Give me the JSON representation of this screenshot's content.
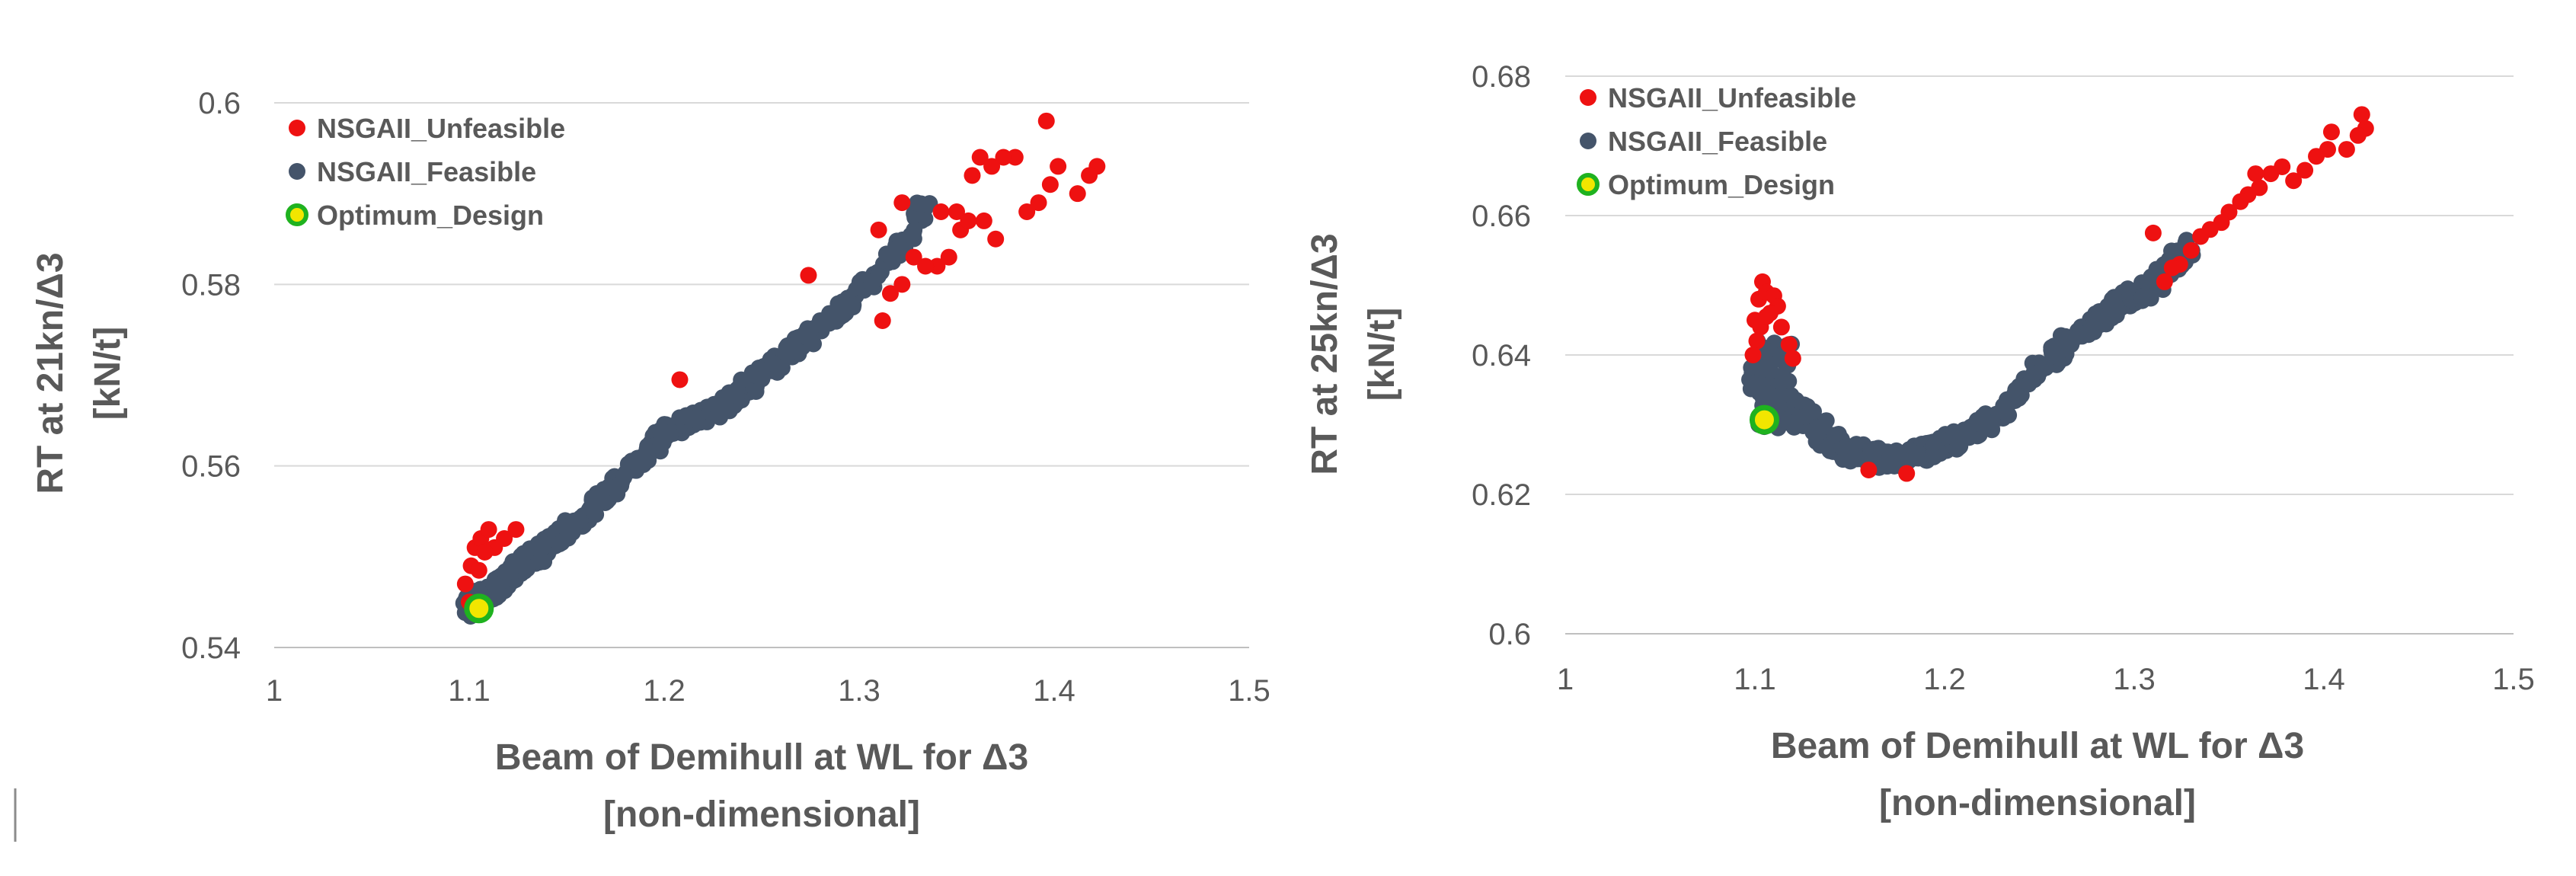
{
  "colors": {
    "unfeasible": "#ee1111",
    "feasible": "#44546a",
    "optimum_fill": "#f2e600",
    "optimum_ring": "#1fb21f"
  },
  "chart_data": [
    {
      "type": "scatter",
      "title": "",
      "xlabel": [
        "Beam of Demihull at WL for Δ3",
        "[non-dimensional]"
      ],
      "ylabel": [
        "RT at 21kn/Δ3",
        "[kN/t]"
      ],
      "xlim": [
        1,
        1.5
      ],
      "ylim": [
        0.54,
        0.6
      ],
      "xticks": [
        "1",
        "1.1",
        "1.2",
        "1.3",
        "1.4",
        "1.5"
      ],
      "yticks": [
        "0.54",
        "0.56",
        "0.58",
        "0.6"
      ],
      "legend_position": "top-left",
      "series": [
        {
          "name": "NSGAII_Unfeasible",
          "points": [
            [
              1.396,
              0.598
            ],
            [
              1.422,
              0.593
            ],
            [
              1.418,
              0.592
            ],
            [
              1.412,
              0.59
            ],
            [
              1.402,
              0.593
            ],
            [
              1.398,
              0.591
            ],
            [
              1.392,
              0.589
            ],
            [
              1.386,
              0.588
            ],
            [
              1.38,
              0.594
            ],
            [
              1.374,
              0.594
            ],
            [
              1.368,
              0.593
            ],
            [
              1.362,
              0.594
            ],
            [
              1.358,
              0.592
            ],
            [
              1.364,
              0.587
            ],
            [
              1.37,
              0.585
            ],
            [
              1.352,
              0.586
            ],
            [
              1.346,
              0.583
            ],
            [
              1.34,
              0.582
            ],
            [
              1.334,
              0.582
            ],
            [
              1.328,
              0.583
            ],
            [
              1.322,
              0.58
            ],
            [
              1.316,
              0.579
            ],
            [
              1.312,
              0.576
            ],
            [
              1.342,
              0.588
            ],
            [
              1.35,
              0.588
            ],
            [
              1.356,
              0.587
            ],
            [
              1.31,
              0.586
            ],
            [
              1.274,
              0.581
            ],
            [
              1.208,
              0.5695
            ],
            [
              1.322,
              0.589
            ],
            [
              1.098,
              0.547
            ],
            [
              1.101,
              0.549
            ],
            [
              1.103,
              0.551
            ],
            [
              1.106,
              0.552
            ],
            [
              1.11,
              0.553
            ],
            [
              1.113,
              0.551
            ],
            [
              1.118,
              0.552
            ],
            [
              1.124,
              0.553
            ],
            [
              1.1,
              0.545
            ],
            [
              1.105,
              0.5485
            ],
            [
              1.108,
              0.5505
            ]
          ]
        },
        {
          "name": "NSGAII_Feasible",
          "generator": "band",
          "anchors": [
            [
              1.1,
              0.5445
            ],
            [
              1.13,
              0.5495
            ],
            [
              1.16,
              0.5545
            ],
            [
              1.18,
              0.559
            ],
            [
              1.2,
              0.5635
            ],
            [
              1.23,
              0.5665
            ],
            [
              1.25,
              0.57
            ],
            [
              1.27,
              0.5735
            ],
            [
              1.3,
              0.579
            ],
            [
              1.32,
              0.584
            ],
            [
              1.335,
              0.589
            ]
          ]
        },
        {
          "name": "Optimum_Design",
          "points": [
            [
              1.105,
              0.5443
            ]
          ]
        }
      ]
    },
    {
      "type": "scatter",
      "title": "",
      "xlabel": [
        "Beam of Demihull at WL for Δ3",
        "[non-dimensional]"
      ],
      "ylabel": [
        "RT at 25kn/Δ3",
        "[kN/t]"
      ],
      "xlim": [
        1,
        1.5
      ],
      "ylim": [
        0.6,
        0.68
      ],
      "xticks": [
        "1",
        "1.1",
        "1.2",
        "1.3",
        "1.4",
        "1.5"
      ],
      "yticks": [
        "0.6",
        "0.62",
        "0.64",
        "0.66",
        "0.68"
      ],
      "legend_position": "top-left",
      "series": [
        {
          "name": "NSGAII_Unfeasible",
          "points": [
            [
              1.42,
              0.6745
            ],
            [
              1.422,
              0.6725
            ],
            [
              1.418,
              0.6715
            ],
            [
              1.404,
              0.672
            ],
            [
              1.402,
              0.6695
            ],
            [
              1.396,
              0.6685
            ],
            [
              1.39,
              0.6665
            ],
            [
              1.384,
              0.665
            ],
            [
              1.378,
              0.667
            ],
            [
              1.372,
              0.666
            ],
            [
              1.366,
              0.664
            ],
            [
              1.36,
              0.663
            ],
            [
              1.356,
              0.662
            ],
            [
              1.35,
              0.6605
            ],
            [
              1.346,
              0.659
            ],
            [
              1.34,
              0.658
            ],
            [
              1.335,
              0.657
            ],
            [
              1.33,
              0.655
            ],
            [
              1.324,
              0.653
            ],
            [
              1.32,
              0.6525
            ],
            [
              1.316,
              0.6505
            ],
            [
              1.31,
              0.6575
            ],
            [
              1.412,
              0.6695
            ],
            [
              1.364,
              0.666
            ],
            [
              1.1,
              0.645
            ],
            [
              1.102,
              0.648
            ],
            [
              1.104,
              0.6505
            ],
            [
              1.106,
              0.649
            ],
            [
              1.11,
              0.6485
            ],
            [
              1.112,
              0.647
            ],
            [
              1.103,
              0.644
            ],
            [
              1.108,
              0.646
            ],
            [
              1.101,
              0.642
            ],
            [
              1.114,
              0.644
            ],
            [
              1.118,
              0.6415
            ],
            [
              1.12,
              0.6395
            ],
            [
              1.099,
              0.64
            ],
            [
              1.106,
              0.6455
            ],
            [
              1.18,
              0.623
            ],
            [
              1.16,
              0.6235
            ]
          ]
        },
        {
          "name": "NSGAII_Feasible",
          "generator": "band",
          "anchors": [
            [
              1.1,
              0.637
            ],
            [
              1.11,
              0.635
            ],
            [
              1.12,
              0.632
            ],
            [
              1.135,
              0.629
            ],
            [
              1.15,
              0.626
            ],
            [
              1.17,
              0.625
            ],
            [
              1.19,
              0.626
            ],
            [
              1.21,
              0.628
            ],
            [
              1.23,
              0.632
            ],
            [
              1.25,
              0.638
            ],
            [
              1.27,
              0.643
            ],
            [
              1.29,
              0.647
            ],
            [
              1.31,
              0.65
            ],
            [
              1.33,
              0.656
            ]
          ]
        },
        {
          "name": "Optimum_Design",
          "points": [
            [
              1.105,
              0.6307
            ]
          ]
        }
      ]
    }
  ]
}
